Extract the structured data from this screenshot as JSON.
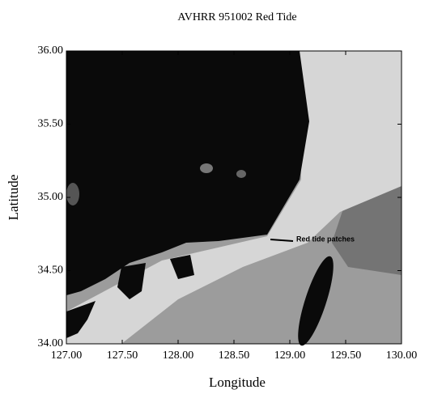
{
  "chart_data": {
    "type": "image",
    "title": "AVHRR 951002 Red Tide",
    "x_label": "Longitude",
    "y_label": "Latitude",
    "xlim": [
      127,
      130
    ],
    "ylim": [
      34,
      36
    ],
    "xticks": [
      {
        "value": 127,
        "label": "127.00"
      },
      {
        "value": 127.5,
        "label": "127.50"
      },
      {
        "value": 128,
        "label": "128.00"
      },
      {
        "value": 128.5,
        "label": "128.50"
      },
      {
        "value": 129,
        "label": "129.00"
      },
      {
        "value": 129.5,
        "label": "129.50"
      },
      {
        "value": 130,
        "label": "130.00"
      }
    ],
    "yticks": [
      {
        "value": 34,
        "label": "34.00"
      },
      {
        "value": 34.5,
        "label": "34.50"
      },
      {
        "value": 35,
        "label": "35.00"
      },
      {
        "value": 35.5,
        "label": "35.50"
      },
      {
        "value": 36,
        "label": "36.00"
      }
    ],
    "annotation": "Red tide patches"
  }
}
